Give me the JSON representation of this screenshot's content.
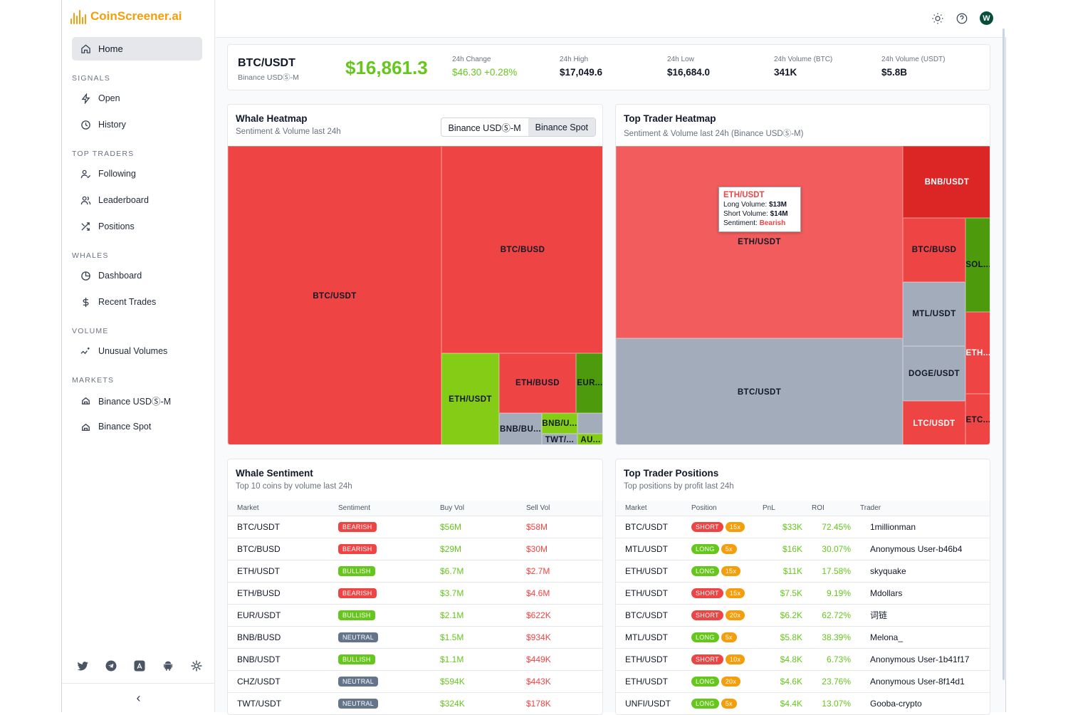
{
  "app": {
    "name": "CoinScreener.ai",
    "avatar_initial": "W"
  },
  "sidebar": {
    "home": "Home",
    "sections": [
      {
        "title": "SIGNALS",
        "items": [
          "Open",
          "History"
        ]
      },
      {
        "title": "TOP TRADERS",
        "items": [
          "Following",
          "Leaderboard",
          "Positions"
        ]
      },
      {
        "title": "WHALES",
        "items": [
          "Dashboard",
          "Recent Trades"
        ]
      },
      {
        "title": "VOLUME",
        "items": [
          "Unusual Volumes"
        ]
      },
      {
        "title": "MARKETS",
        "items": [
          "Binance USDⓈ-M",
          "Binance Spot"
        ]
      }
    ],
    "social_icons": [
      "twitter-icon",
      "telegram-icon",
      "app-store-icon",
      "android-icon",
      "chatgpt-icon"
    ],
    "collapse_label": "‹"
  },
  "ticker": {
    "symbol": "BTC/USDT",
    "exchange": "Binance USDⓈ-M",
    "price": "$16,861.3",
    "stats": [
      {
        "label": "24h Change",
        "value": "$46.30 +0.28%",
        "positive": true
      },
      {
        "label": "24h High",
        "value": "$17,049.6"
      },
      {
        "label": "24h Low",
        "value": "$16,684.0"
      },
      {
        "label": "24h Volume (BTC)",
        "value": "341K"
      },
      {
        "label": "24h Volume (USDT)",
        "value": "$5.8B"
      }
    ]
  },
  "whale_heatmap": {
    "title": "Whale Heatmap",
    "subtitle": "Sentiment & Volume last 24h",
    "tabs": [
      "Binance USDⓈ-M",
      "Binance Spot"
    ],
    "active_tab": 1,
    "tiles": [
      "BTC/USDT",
      "BTC/BUSD",
      "ETH/USDT",
      "ETH/BUSD",
      "EUR...",
      "BNB/BU...",
      "BNB/U...",
      "TWT/...",
      "AU..."
    ]
  },
  "trader_heatmap": {
    "title": "Top Trader Heatmap",
    "subtitle": "Sentiment & Volume last 24h (Binance USDⓈ-M)",
    "tiles": [
      "ETH/USDT",
      "BTC/USDT",
      "BNB/USDT",
      "BTC/BUSD",
      "SOL...",
      "MTL/USDT",
      "ETH...",
      "DOGE/USDT",
      "LTC/USDT",
      "ETC..."
    ],
    "tooltip": {
      "title": "ETH/USDT",
      "long_label": "Long Volume:",
      "long_value": "$13M",
      "short_label": "Short Volume:",
      "short_value": "$14M",
      "sentiment_label": "Sentiment:",
      "sentiment_value": "Bearish"
    }
  },
  "whale_sentiment": {
    "title": "Whale Sentiment",
    "subtitle": "Top 10 coins by volume last 24h",
    "columns": [
      "Market",
      "Sentiment",
      "Buy Vol",
      "Sell Vol"
    ],
    "rows": [
      {
        "market": "BTC/USDT",
        "sentiment": "BEARISH",
        "buy": "$56M",
        "sell": "$58M"
      },
      {
        "market": "BTC/BUSD",
        "sentiment": "BEARISH",
        "buy": "$29M",
        "sell": "$30M"
      },
      {
        "market": "ETH/USDT",
        "sentiment": "BULLISH",
        "buy": "$6.7M",
        "sell": "$2.7M"
      },
      {
        "market": "ETH/BUSD",
        "sentiment": "BEARISH",
        "buy": "$3.7M",
        "sell": "$4.6M"
      },
      {
        "market": "EUR/USDT",
        "sentiment": "BULLISH",
        "buy": "$2.1M",
        "sell": "$622K"
      },
      {
        "market": "BNB/BUSD",
        "sentiment": "NEUTRAL",
        "buy": "$1.5M",
        "sell": "$934K"
      },
      {
        "market": "BNB/USDT",
        "sentiment": "BULLISH",
        "buy": "$1.1M",
        "sell": "$449K"
      },
      {
        "market": "CHZ/USDT",
        "sentiment": "NEUTRAL",
        "buy": "$594K",
        "sell": "$443K"
      },
      {
        "market": "TWT/USDT",
        "sentiment": "NEUTRAL",
        "buy": "$324K",
        "sell": "$178K"
      }
    ]
  },
  "trader_positions": {
    "title": "Top Trader Positions",
    "subtitle": "Top positions by profit last 24h",
    "columns": [
      "Market",
      "Position",
      "PnL",
      "ROI",
      "Trader"
    ],
    "rows": [
      {
        "market": "BTC/USDT",
        "side": "SHORT",
        "lev": "15x",
        "pnl": "$33K",
        "roi": "72.45%",
        "trader": "1millionman"
      },
      {
        "market": "MTL/USDT",
        "side": "LONG",
        "lev": "5x",
        "pnl": "$16K",
        "roi": "30.07%",
        "trader": "Anonymous User-b46b4"
      },
      {
        "market": "ETH/USDT",
        "side": "LONG",
        "lev": "15x",
        "pnl": "$11K",
        "roi": "17.58%",
        "trader": "skyquake"
      },
      {
        "market": "ETH/USDT",
        "side": "SHORT",
        "lev": "15x",
        "pnl": "$7.5K",
        "roi": "9.19%",
        "trader": "Mdollars"
      },
      {
        "market": "BTC/USDT",
        "side": "SHORT",
        "lev": "20x",
        "pnl": "$6.2K",
        "roi": "62.72%",
        "trader": "词链"
      },
      {
        "market": "MTL/USDT",
        "side": "LONG",
        "lev": "5x",
        "pnl": "$5.8K",
        "roi": "38.39%",
        "trader": "Melona_"
      },
      {
        "market": "ETH/USDT",
        "side": "SHORT",
        "lev": "10x",
        "pnl": "$4.8K",
        "roi": "6.73%",
        "trader": "Anonymous User-1b41f17"
      },
      {
        "market": "ETH/USDT",
        "side": "LONG",
        "lev": "20x",
        "pnl": "$4.6K",
        "roi": "23.76%",
        "trader": "Anonymous User-8f14d1"
      },
      {
        "market": "UNFI/USDT",
        "side": "LONG",
        "lev": "5x",
        "pnl": "$4.4K",
        "roi": "13.07%",
        "trader": "Gooba-crypto"
      }
    ]
  },
  "colors": {
    "accent": "#f59e0b",
    "positive": "#65c61c",
    "negative": "#ef4444",
    "neutral": "#64748b",
    "tile_red": "#ee4444",
    "tile_red_light": "#f25c5c",
    "tile_red_dark": "#dc2626",
    "tile_green": "#84cc16",
    "tile_green_dark": "#4d9a0d",
    "tile_grey": "#a3acba"
  }
}
